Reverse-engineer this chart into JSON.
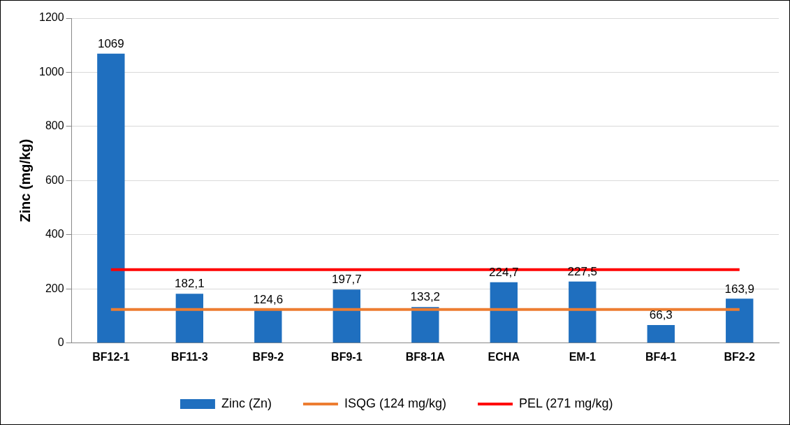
{
  "chart_data": {
    "type": "bar",
    "ylabel": "Zinc (mg/kg)",
    "categories": [
      "BF12-1",
      "BF11-3",
      "BF9-2",
      "BF9-1",
      "BF8-1A",
      "ECHA",
      "EM-1",
      "BF4-1",
      "BF2-2"
    ],
    "series": [
      {
        "name": "Zinc (Zn)",
        "color": "#1f6fbf",
        "values": [
          1069,
          182.1,
          124.6,
          197.7,
          133.2,
          224.7,
          227.5,
          66.3,
          163.9
        ],
        "value_labels": [
          "1069",
          "182,1",
          "124,6",
          "197,7",
          "133,2",
          "224,7",
          "227,5",
          "66,3",
          "163,9"
        ]
      },
      {
        "name": "ISQG (124 mg/kg)",
        "type": "line",
        "color": "#ed7d31",
        "values": [
          124,
          124,
          124,
          124,
          124,
          124,
          124,
          124,
          124
        ]
      },
      {
        "name": "PEL (271 mg/kg)",
        "type": "line",
        "color": "#ff0000",
        "values": [
          271,
          271,
          271,
          271,
          271,
          271,
          271,
          271,
          271
        ]
      }
    ],
    "ylim": [
      0,
      1200
    ],
    "yticks": [
      0,
      200,
      400,
      600,
      800,
      1000,
      1200
    ],
    "grid": "y",
    "legend": "bottom",
    "marker": "none",
    "line_style": "solid"
  }
}
